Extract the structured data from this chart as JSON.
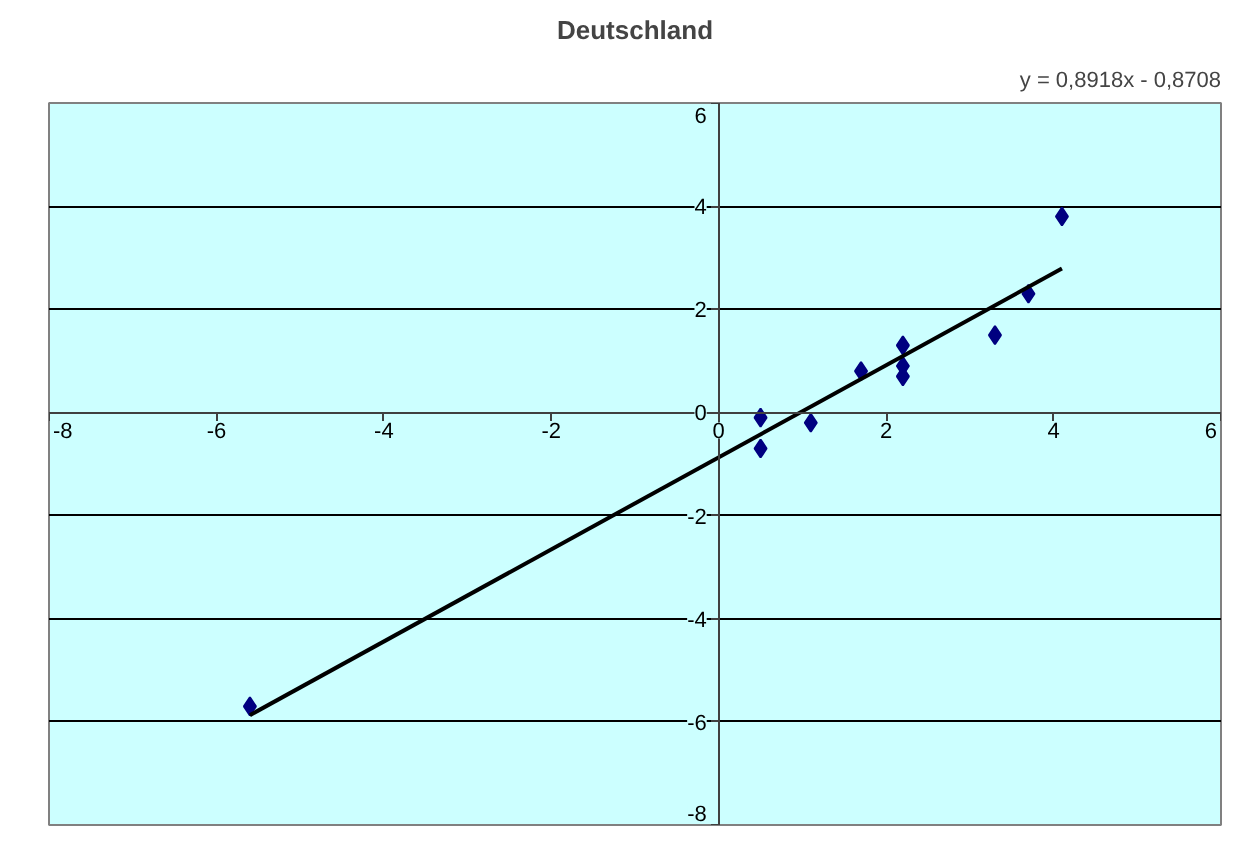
{
  "chart_data": {
    "type": "scatter",
    "title": "Deutschland",
    "annotations": [
      "y = 0,8918x - 0,8708"
    ],
    "series": [
      {
        "color": "#000080",
        "marker": "diamond",
        "x": [
          -5.6,
          0.5,
          0.5,
          1.1,
          1.7,
          2.2,
          2.2,
          2.2,
          3.3,
          3.7,
          4.1
        ],
        "values": [
          -5.7,
          -0.1,
          -0.7,
          -0.2,
          0.8,
          1.3,
          0.9,
          0.7,
          1.5,
          2.3,
          3.8
        ]
      },
      {
        "type": "line",
        "color": "#000000",
        "marker": "none",
        "line_style": "solid",
        "x": [
          -5.6,
          4.1
        ],
        "values": [
          -5.87,
          2.79
        ]
      }
    ],
    "xlim": [
      -8,
      6
    ],
    "xticks": [
      -8,
      -6,
      -4,
      -2,
      0,
      2,
      4,
      6
    ],
    "ylim": [
      -8,
      6
    ],
    "yticks": [
      -8,
      -6,
      -4,
      -2,
      0,
      2,
      4,
      6
    ],
    "grid": "y"
  }
}
